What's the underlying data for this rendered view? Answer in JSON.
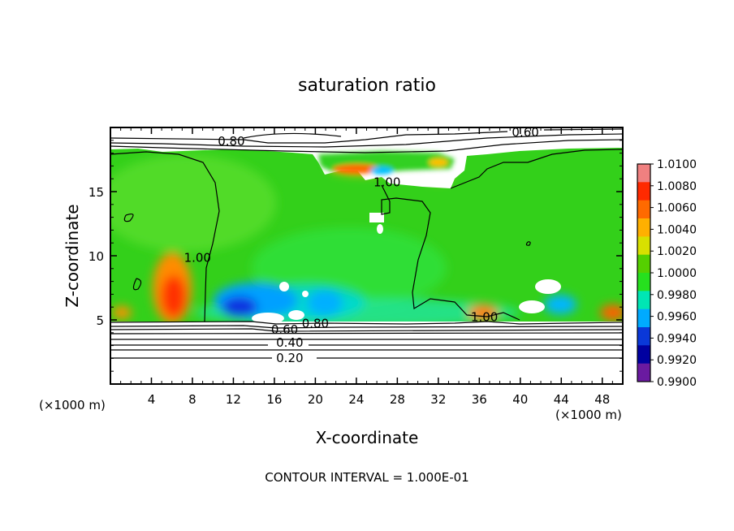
{
  "chart_data": {
    "type": "heatmap",
    "title": "saturation ratio",
    "xlabel": "X-coordinate",
    "ylabel": "Z-coordinate",
    "x_unit_left": "(×1000 m)",
    "x_unit_right": "(×1000 m)",
    "footer": "CONTOUR INTERVAL = 1.000E-01",
    "xlim": [
      0,
      50
    ],
    "ylim": [
      0,
      20
    ],
    "x_ticks": [
      "4",
      "8",
      "12",
      "16",
      "20",
      "24",
      "28",
      "32",
      "36",
      "40",
      "44",
      "48"
    ],
    "x_tick_values": [
      4,
      8,
      12,
      16,
      20,
      24,
      28,
      32,
      36,
      40,
      44,
      48
    ],
    "y_ticks": [
      "5",
      "10",
      "15"
    ],
    "y_tick_values": [
      5,
      10,
      15
    ],
    "colorbar": {
      "labels": [
        "1.0100",
        "1.0080",
        "1.0060",
        "1.0040",
        "1.0020",
        "1.0000",
        "0.9980",
        "0.9960",
        "0.9940",
        "0.9920",
        "0.9900"
      ],
      "colors": [
        "#f08080",
        "#ff2a00",
        "#ff6a00",
        "#ffb000",
        "#d8e000",
        "#55d000",
        "#26e01e",
        "#00e6b4",
        "#00aaff",
        "#0a38d8",
        "#0000a0",
        "#6a1aa0"
      ]
    },
    "contour_labels": [
      {
        "text": "0.80",
        "x": 11.8,
        "y": 18.8
      },
      {
        "text": "0.60",
        "x": 40.5,
        "y": 19.5
      },
      {
        "text": "1.00",
        "x": 27.0,
        "y": 15.6
      },
      {
        "text": "1.00",
        "x": 8.5,
        "y": 9.7
      },
      {
        "text": "1.00",
        "x": 36.5,
        "y": 5.1
      },
      {
        "text": "0.80",
        "x": 20.0,
        "y": 4.6
      },
      {
        "text": "0.60",
        "x": 17.0,
        "y": 4.1
      },
      {
        "text": "0.40",
        "x": 17.5,
        "y": 3.1
      },
      {
        "text": "0.20",
        "x": 17.5,
        "y": 1.9
      }
    ],
    "color_regions": [
      {
        "level": "1.0000",
        "description": "background field"
      },
      {
        "level": "1.0060",
        "x": 6.0,
        "y": 7.0,
        "note": "red plume"
      },
      {
        "level": "0.9940",
        "x": 16.0,
        "y": 5.8,
        "note": "blue region"
      }
    ]
  }
}
